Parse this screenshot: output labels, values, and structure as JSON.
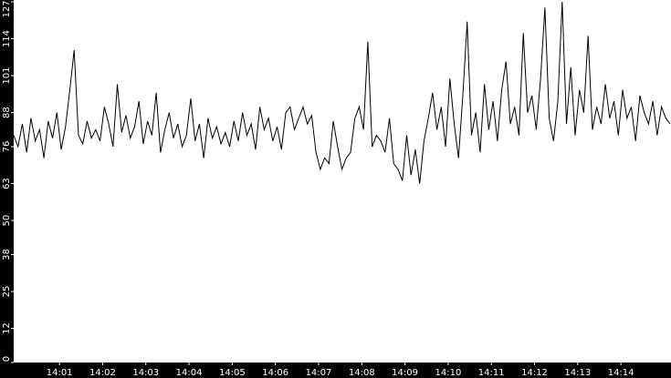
{
  "chart_data": {
    "type": "line",
    "x": [
      0,
      1,
      2,
      3,
      4,
      5,
      6,
      7,
      8,
      9,
      10,
      11,
      12,
      13,
      14,
      15,
      16,
      17,
      18,
      19,
      20,
      21,
      22,
      23,
      24,
      25,
      26,
      27,
      28,
      29,
      30,
      31,
      32,
      33,
      34,
      35,
      36,
      37,
      38,
      39,
      40,
      41,
      42,
      43,
      44,
      45,
      46,
      47,
      48,
      49,
      50,
      51,
      52,
      53,
      54,
      55,
      56,
      57,
      58,
      59,
      60,
      61,
      62,
      63,
      64,
      65,
      66,
      67,
      68,
      69,
      70,
      71,
      72,
      73,
      74,
      75,
      76,
      77,
      78,
      79,
      80,
      81,
      82,
      83,
      84,
      85,
      86,
      87,
      88,
      89,
      90,
      91,
      92,
      93,
      94,
      95,
      96,
      97,
      98,
      99,
      100,
      101,
      102,
      103,
      104,
      105,
      106,
      107,
      108,
      109,
      110,
      111,
      112,
      113,
      114,
      115,
      116,
      117,
      118,
      119,
      120,
      121,
      122,
      123,
      124,
      125,
      126,
      127,
      128,
      129,
      130,
      131,
      132,
      133,
      134,
      135,
      136,
      137,
      138,
      139,
      140,
      141,
      142,
      143,
      144,
      145,
      146,
      147,
      148,
      149,
      150,
      151,
      152
    ],
    "series": [
      {
        "color": "#000000",
        "values": [
          80,
          76,
          84,
          74,
          86,
          78,
          82,
          72,
          85,
          79,
          88,
          75,
          83,
          96,
          110,
          80,
          77,
          85,
          79,
          82,
          78,
          90,
          84,
          76,
          98,
          81,
          87,
          79,
          83,
          92,
          77,
          85,
          80,
          95,
          74,
          82,
          88,
          79,
          84,
          76,
          80,
          93,
          78,
          84,
          72,
          86,
          79,
          83,
          77,
          81,
          76,
          85,
          78,
          88,
          80,
          84,
          75,
          90,
          82,
          86,
          78,
          83,
          75,
          88,
          90,
          82,
          86,
          90,
          84,
          87,
          74,
          68,
          72,
          70,
          85,
          76,
          68,
          72,
          74,
          86,
          90,
          82,
          113,
          76,
          80,
          78,
          74,
          86,
          70,
          68,
          64,
          80,
          66,
          75,
          63,
          78,
          86,
          95,
          82,
          90,
          76,
          100,
          84,
          72,
          94,
          120,
          80,
          88,
          74,
          98,
          82,
          92,
          78,
          96,
          106,
          84,
          90,
          80,
          116,
          88,
          94,
          82,
          100,
          125,
          86,
          78,
          92,
          127,
          84,
          104,
          80,
          96,
          88,
          115,
          82,
          90,
          84,
          98,
          86,
          92,
          80,
          96,
          86,
          90,
          78,
          94,
          88,
          84,
          92,
          80,
          90,
          86,
          84
        ]
      }
    ],
    "xlim": [
      0,
      152.2
    ],
    "xticks": [
      {
        "value": 10.6,
        "label": "14:01"
      },
      {
        "value": 20.6,
        "label": "14:02"
      },
      {
        "value": 30.6,
        "label": "14:03"
      },
      {
        "value": 40.6,
        "label": "14:04"
      },
      {
        "value": 50.6,
        "label": "14:05"
      },
      {
        "value": 60.6,
        "label": "14:06"
      },
      {
        "value": 70.6,
        "label": "14:07"
      },
      {
        "value": 80.6,
        "label": "14:08"
      },
      {
        "value": 90.6,
        "label": "14:09"
      },
      {
        "value": 100.6,
        "label": "14:10"
      },
      {
        "value": 110.6,
        "label": "14:11"
      },
      {
        "value": 120.6,
        "label": "14:12"
      },
      {
        "value": 130.6,
        "label": "14:13"
      },
      {
        "value": 140.6,
        "label": "14:14"
      }
    ],
    "ylim": [
      0,
      127
    ],
    "yticks": [
      0,
      12,
      25,
      38,
      50,
      63,
      76,
      88,
      101,
      114,
      127
    ]
  }
}
